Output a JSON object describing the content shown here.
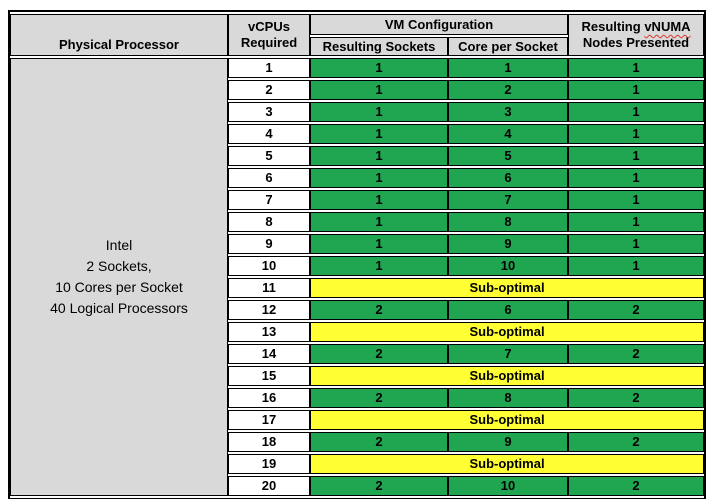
{
  "chart_data": {
    "type": "table",
    "header": {
      "physical_processor": "Physical Processor",
      "vcpus_required": "vCPUs Required",
      "vm_configuration": "VM Configuration",
      "resulting_sockets": "Resulting Sockets",
      "core_per_socket": "Core per Socket",
      "resulting_vnuma_prefix": "Resulting",
      "resulting_vnuma_word": "vNUMA",
      "resulting_vnuma_line2": "Nodes Presented"
    },
    "physical_processor_lines": [
      "Intel",
      "2 Sockets,",
      "10 Cores per Socket",
      "40 Logical Processors"
    ],
    "suboptimal_label": "Sub-optimal",
    "rows": [
      {
        "vcpus": "1",
        "sockets": "1",
        "cores": "1",
        "vnuma": "1",
        "status": "optimal"
      },
      {
        "vcpus": "2",
        "sockets": "1",
        "cores": "2",
        "vnuma": "1",
        "status": "optimal"
      },
      {
        "vcpus": "3",
        "sockets": "1",
        "cores": "3",
        "vnuma": "1",
        "status": "optimal"
      },
      {
        "vcpus": "4",
        "sockets": "1",
        "cores": "4",
        "vnuma": "1",
        "status": "optimal"
      },
      {
        "vcpus": "5",
        "sockets": "1",
        "cores": "5",
        "vnuma": "1",
        "status": "optimal"
      },
      {
        "vcpus": "6",
        "sockets": "1",
        "cores": "6",
        "vnuma": "1",
        "status": "optimal"
      },
      {
        "vcpus": "7",
        "sockets": "1",
        "cores": "7",
        "vnuma": "1",
        "status": "optimal"
      },
      {
        "vcpus": "8",
        "sockets": "1",
        "cores": "8",
        "vnuma": "1",
        "status": "optimal"
      },
      {
        "vcpus": "9",
        "sockets": "1",
        "cores": "9",
        "vnuma": "1",
        "status": "optimal"
      },
      {
        "vcpus": "10",
        "sockets": "1",
        "cores": "10",
        "vnuma": "1",
        "status": "optimal"
      },
      {
        "vcpus": "11",
        "status": "suboptimal"
      },
      {
        "vcpus": "12",
        "sockets": "2",
        "cores": "6",
        "vnuma": "2",
        "status": "optimal"
      },
      {
        "vcpus": "13",
        "status": "suboptimal"
      },
      {
        "vcpus": "14",
        "sockets": "2",
        "cores": "7",
        "vnuma": "2",
        "status": "optimal"
      },
      {
        "vcpus": "15",
        "status": "suboptimal"
      },
      {
        "vcpus": "16",
        "sockets": "2",
        "cores": "8",
        "vnuma": "2",
        "status": "optimal"
      },
      {
        "vcpus": "17",
        "status": "suboptimal"
      },
      {
        "vcpus": "18",
        "sockets": "2",
        "cores": "9",
        "vnuma": "2",
        "status": "optimal"
      },
      {
        "vcpus": "19",
        "status": "suboptimal"
      },
      {
        "vcpus": "20",
        "sockets": "2",
        "cores": "10",
        "vnuma": "2",
        "status": "optimal"
      }
    ],
    "colors": {
      "optimal": "#20A551",
      "suboptimal": "#FFFF33",
      "header": "#D9D9D9",
      "border": "#000000",
      "spellcheck_underline": "#D83A2E"
    }
  }
}
